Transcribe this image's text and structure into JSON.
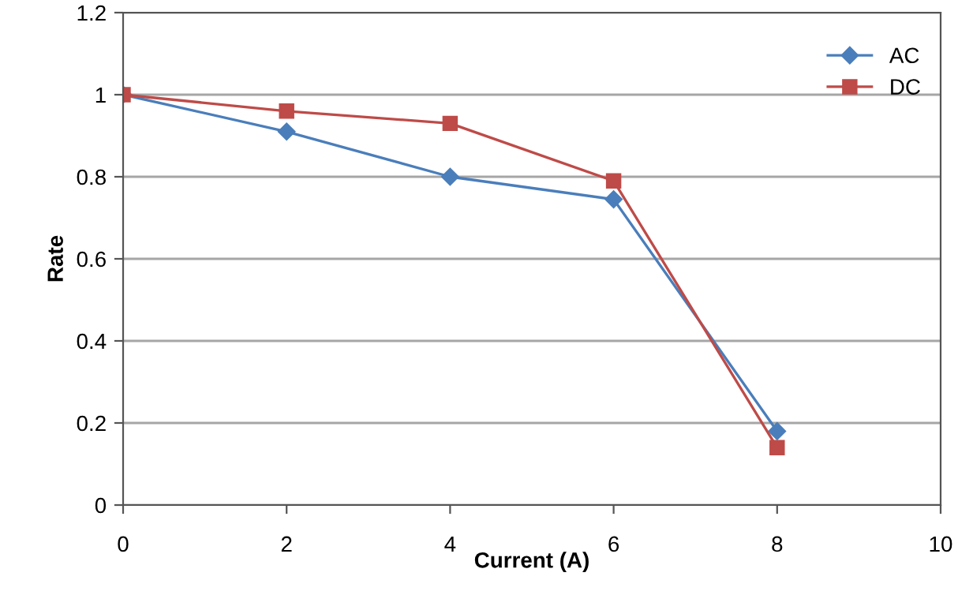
{
  "chart_data": {
    "type": "line",
    "xlabel": "Current (A)",
    "ylabel": "Rate",
    "x": [
      0,
      2,
      4,
      6,
      8
    ],
    "series": [
      {
        "name": "AC",
        "color": "#4a7ebb",
        "values": [
          1,
          0.91,
          0.8,
          0.745,
          0.18
        ],
        "marker": "diamond"
      },
      {
        "name": "DC",
        "color": "#be4b48",
        "values": [
          1,
          0.96,
          0.93,
          0.79,
          0.14
        ],
        "marker": "square"
      }
    ],
    "xlim": [
      0,
      10
    ],
    "xticks": [
      0,
      2,
      4,
      6,
      8,
      10
    ],
    "ylim": [
      0,
      1.2
    ],
    "yticks": [
      0,
      0.2,
      0.4,
      0.6,
      0.8,
      1,
      1.2
    ],
    "grid": "y",
    "legend": "top right",
    "line_style": "solid"
  }
}
